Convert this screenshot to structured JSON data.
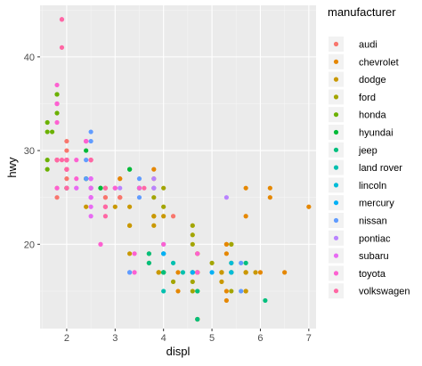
{
  "chart_data": {
    "type": "scatter",
    "xlabel": "displ",
    "ylabel": "hwy",
    "xlim": [
      1.45,
      7.15
    ],
    "ylim": [
      11.0,
      45.5
    ],
    "x_ticks": [
      2,
      3,
      4,
      5,
      6,
      7
    ],
    "y_ticks": [
      20,
      30,
      40
    ],
    "grid": true,
    "legend_title": "manufacturer",
    "legend_position": "right",
    "series": [
      {
        "name": "audi",
        "color": "#F8766D",
        "points": [
          [
            1.8,
            29
          ],
          [
            1.8,
            29
          ],
          [
            2.0,
            31
          ],
          [
            2.0,
            30
          ],
          [
            2.8,
            26
          ],
          [
            2.8,
            26
          ],
          [
            3.1,
            27
          ],
          [
            1.8,
            26
          ],
          [
            1.8,
            25
          ],
          [
            2.0,
            28
          ],
          [
            2.0,
            27
          ],
          [
            2.8,
            25
          ],
          [
            2.8,
            25
          ],
          [
            3.1,
            25
          ],
          [
            3.1,
            25
          ],
          [
            2.8,
            24
          ],
          [
            3.1,
            25
          ],
          [
            4.2,
            23
          ]
        ]
      },
      {
        "name": "chevrolet",
        "color": "#E58700",
        "points": [
          [
            5.3,
            20
          ],
          [
            5.3,
            15
          ],
          [
            5.3,
            20
          ],
          [
            5.7,
            17
          ],
          [
            6.0,
            17
          ],
          [
            5.7,
            26
          ],
          [
            5.7,
            23
          ],
          [
            6.2,
            26
          ],
          [
            6.2,
            25
          ],
          [
            7.0,
            24
          ],
          [
            5.3,
            19
          ],
          [
            5.3,
            14
          ],
          [
            5.7,
            15
          ],
          [
            6.5,
            17
          ],
          [
            3.1,
            27
          ],
          [
            3.8,
            28
          ],
          [
            3.8,
            27
          ],
          [
            4.3,
            17
          ],
          [
            4.3,
            15
          ],
          [
            5.7,
            17
          ]
        ]
      },
      {
        "name": "dodge",
        "color": "#C99800",
        "points": [
          [
            2.4,
            24
          ],
          [
            3.0,
            24
          ],
          [
            3.3,
            22
          ],
          [
            3.3,
            19
          ],
          [
            3.3,
            24
          ],
          [
            3.3,
            22
          ],
          [
            3.8,
            23
          ],
          [
            3.8,
            23
          ],
          [
            3.8,
            22
          ],
          [
            4.0,
            23
          ],
          [
            3.7,
            19
          ],
          [
            3.7,
            18
          ],
          [
            3.9,
            17
          ],
          [
            3.9,
            17
          ],
          [
            4.7,
            19
          ],
          [
            4.7,
            19
          ],
          [
            5.2,
            17
          ],
          [
            5.2,
            17
          ],
          [
            3.9,
            17
          ],
          [
            4.7,
            17
          ],
          [
            4.7,
            15
          ],
          [
            4.7,
            17
          ],
          [
            5.2,
            17
          ],
          [
            5.7,
            15
          ],
          [
            5.9,
            17
          ],
          [
            4.7,
            12
          ],
          [
            4.7,
            17
          ],
          [
            4.7,
            12
          ],
          [
            5.2,
            16
          ],
          [
            5.7,
            17
          ]
        ]
      },
      {
        "name": "ford",
        "color": "#A3A500",
        "points": [
          [
            4.0,
            17
          ],
          [
            4.0,
            17
          ],
          [
            4.6,
            16
          ],
          [
            5.4,
            15
          ],
          [
            5.4,
            17
          ],
          [
            4.6,
            17
          ],
          [
            4.6,
            17
          ],
          [
            5.4,
            17
          ],
          [
            3.8,
            26
          ],
          [
            3.8,
            25
          ],
          [
            4.0,
            26
          ],
          [
            4.0,
            24
          ],
          [
            4.6,
            21
          ],
          [
            4.6,
            22
          ],
          [
            5.4,
            18
          ],
          [
            5.4,
            20
          ],
          [
            4.6,
            15
          ],
          [
            4.0,
            19
          ],
          [
            4.2,
            16
          ],
          [
            5.0,
            18
          ],
          [
            4.6,
            20
          ],
          [
            5.4,
            20
          ]
        ]
      },
      {
        "name": "honda",
        "color": "#6BB100",
        "points": [
          [
            1.6,
            28
          ],
          [
            1.6,
            29
          ],
          [
            1.6,
            33
          ],
          [
            1.6,
            32
          ],
          [
            1.7,
            32
          ],
          [
            1.8,
            34
          ],
          [
            1.8,
            36
          ],
          [
            1.8,
            36
          ],
          [
            2.0,
            29
          ]
        ]
      },
      {
        "name": "hyundai",
        "color": "#00BA38",
        "points": [
          [
            2.0,
            26
          ],
          [
            2.0,
            26
          ],
          [
            2.0,
            26
          ],
          [
            2.7,
            26
          ],
          [
            2.7,
            26
          ],
          [
            3.3,
            28
          ],
          [
            2.4,
            27
          ],
          [
            2.4,
            30
          ],
          [
            3.5,
            26
          ],
          [
            3.5,
            26
          ],
          [
            2.4,
            27
          ],
          [
            2.5,
            26
          ],
          [
            2.5,
            26
          ],
          [
            3.3,
            28
          ]
        ]
      },
      {
        "name": "jeep",
        "color": "#00BF7D",
        "points": [
          [
            3.7,
            19
          ],
          [
            3.7,
            18
          ],
          [
            4.0,
            17
          ],
          [
            4.0,
            17
          ],
          [
            4.7,
            15
          ],
          [
            4.7,
            12
          ],
          [
            5.7,
            18
          ],
          [
            6.1,
            14
          ]
        ]
      },
      {
        "name": "land rover",
        "color": "#00C0AF",
        "points": [
          [
            4.0,
            15
          ],
          [
            4.2,
            18
          ],
          [
            4.4,
            17
          ],
          [
            4.6,
            17
          ]
        ]
      },
      {
        "name": "lincoln",
        "color": "#00BCD8",
        "points": [
          [
            5.4,
            17
          ],
          [
            5.4,
            18
          ],
          [
            5.4,
            17
          ]
        ]
      },
      {
        "name": "mercury",
        "color": "#00B0F6",
        "points": [
          [
            4.0,
            19
          ],
          [
            4.0,
            19
          ],
          [
            4.6,
            17
          ],
          [
            5.0,
            17
          ]
        ]
      },
      {
        "name": "nissan",
        "color": "#619CFF",
        "points": [
          [
            2.4,
            29
          ],
          [
            2.4,
            27
          ],
          [
            2.5,
            31
          ],
          [
            2.5,
            32
          ],
          [
            3.5,
            27
          ],
          [
            3.5,
            26
          ],
          [
            3.0,
            26
          ],
          [
            3.5,
            25
          ],
          [
            3.3,
            17
          ],
          [
            3.3,
            17
          ],
          [
            4.0,
            20
          ],
          [
            5.6,
            18
          ],
          [
            5.6,
            15
          ]
        ]
      },
      {
        "name": "pontiac",
        "color": "#B983FF",
        "points": [
          [
            3.1,
            26
          ],
          [
            3.8,
            27
          ],
          [
            3.8,
            26
          ],
          [
            3.8,
            26
          ],
          [
            5.3,
            25
          ]
        ]
      },
      {
        "name": "subaru",
        "color": "#E76BF3",
        "points": [
          [
            2.5,
            25
          ],
          [
            2.5,
            24
          ],
          [
            2.5,
            27
          ],
          [
            2.5,
            25
          ],
          [
            2.5,
            26
          ],
          [
            2.5,
            23
          ],
          [
            2.2,
            26
          ],
          [
            2.2,
            26
          ],
          [
            2.5,
            26
          ],
          [
            2.5,
            26
          ],
          [
            2.5,
            25
          ],
          [
            2.5,
            27
          ],
          [
            2.5,
            25
          ],
          [
            2.5,
            27
          ]
        ]
      },
      {
        "name": "toyota",
        "color": "#FD61D1",
        "points": [
          [
            2.7,
            20
          ],
          [
            2.7,
            20
          ],
          [
            3.4,
            19
          ],
          [
            3.4,
            17
          ],
          [
            4.0,
            20
          ],
          [
            4.7,
            17
          ],
          [
            4.7,
            19
          ],
          [
            1.8,
            26
          ],
          [
            1.8,
            35
          ],
          [
            1.8,
            37
          ],
          [
            1.8,
            35
          ],
          [
            2.2,
            29
          ],
          [
            2.2,
            27
          ],
          [
            2.4,
            31
          ],
          [
            2.4,
            31
          ],
          [
            3.0,
            26
          ],
          [
            3.0,
            26
          ],
          [
            3.5,
            26
          ],
          [
            1.8,
            33
          ],
          [
            1.8,
            35
          ],
          [
            1.9,
            44
          ],
          [
            2.0,
            26
          ],
          [
            2.0,
            29
          ],
          [
            2.4,
            31
          ],
          [
            2.4,
            31
          ]
        ]
      },
      {
        "name": "volkswagen",
        "color": "#FF67A4",
        "points": [
          [
            1.8,
            29
          ],
          [
            1.8,
            29
          ],
          [
            2.0,
            28
          ],
          [
            2.0,
            29
          ],
          [
            2.8,
            26
          ],
          [
            1.9,
            44
          ],
          [
            2.0,
            29
          ],
          [
            2.0,
            26
          ],
          [
            2.0,
            29
          ],
          [
            2.5,
            29
          ],
          [
            2.8,
            23
          ],
          [
            1.9,
            41
          ],
          [
            2.0,
            29
          ],
          [
            2.0,
            28
          ],
          [
            2.0,
            29
          ],
          [
            2.0,
            26
          ],
          [
            2.5,
            29
          ],
          [
            2.8,
            24
          ],
          [
            1.8,
            29
          ],
          [
            1.8,
            29
          ],
          [
            2.0,
            28
          ],
          [
            2.0,
            29
          ],
          [
            2.8,
            24
          ],
          [
            3.6,
            26
          ],
          [
            1.9,
            29
          ],
          [
            2.0,
            28
          ],
          [
            2.5,
            29
          ],
          [
            2.0,
            29
          ]
        ]
      }
    ]
  }
}
